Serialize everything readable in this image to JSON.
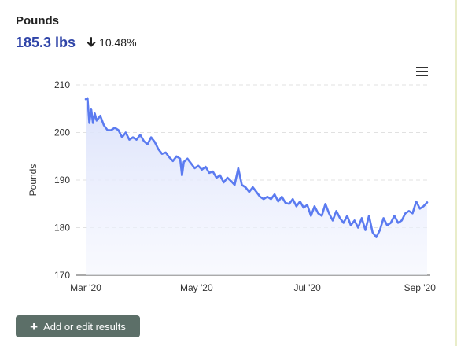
{
  "widget": {
    "title": "Pounds",
    "current_value": "185.3 lbs",
    "change": "10.48%",
    "change_icon": "arrow-down-icon",
    "menu_icon": "hamburger-menu-icon",
    "add_button_label": "Add or edit results",
    "add_button_icon": "plus-icon"
  },
  "colors": {
    "accent": "#2f44a8",
    "line": "#5b7bf0",
    "area": "#e8ecfd",
    "button": "#5c6f68"
  },
  "chart_data": {
    "type": "area",
    "title": "",
    "xlabel": "",
    "ylabel": "Pounds",
    "ylim": [
      170,
      210
    ],
    "yticks": [
      170,
      180,
      190,
      200,
      210
    ],
    "xlim": [
      "2020-03-01",
      "2020-09-05"
    ],
    "xticks": [
      {
        "date": "2020-03-01",
        "label": "Mar '20"
      },
      {
        "date": "2020-05-01",
        "label": "May '20"
      },
      {
        "date": "2020-07-01",
        "label": "Jul '20"
      },
      {
        "date": "2020-09-01",
        "label": "Sep '20"
      }
    ],
    "grid": "horizontal dashed",
    "series": [
      {
        "name": "",
        "points": [
          [
            "2020-03-01",
            207.0
          ],
          [
            "2020-03-02",
            207.2
          ],
          [
            "2020-03-03",
            202.0
          ],
          [
            "2020-03-04",
            205.0
          ],
          [
            "2020-03-05",
            202.0
          ],
          [
            "2020-03-06",
            204.0
          ],
          [
            "2020-03-07",
            202.5
          ],
          [
            "2020-03-09",
            203.5
          ],
          [
            "2020-03-11",
            201.5
          ],
          [
            "2020-03-13",
            200.5
          ],
          [
            "2020-03-15",
            200.5
          ],
          [
            "2020-03-17",
            201.0
          ],
          [
            "2020-03-19",
            200.5
          ],
          [
            "2020-03-21",
            199.0
          ],
          [
            "2020-03-23",
            200.0
          ],
          [
            "2020-03-25",
            198.5
          ],
          [
            "2020-03-27",
            199.0
          ],
          [
            "2020-03-29",
            198.5
          ],
          [
            "2020-03-31",
            199.5
          ],
          [
            "2020-04-02",
            198.2
          ],
          [
            "2020-04-04",
            197.5
          ],
          [
            "2020-04-06",
            199.0
          ],
          [
            "2020-04-08",
            198.0
          ],
          [
            "2020-04-10",
            196.5
          ],
          [
            "2020-04-12",
            195.5
          ],
          [
            "2020-04-14",
            195.8
          ],
          [
            "2020-04-16",
            194.8
          ],
          [
            "2020-04-18",
            194.0
          ],
          [
            "2020-04-20",
            195.0
          ],
          [
            "2020-04-22",
            194.5
          ],
          [
            "2020-04-23",
            191.0
          ],
          [
            "2020-04-24",
            193.8
          ],
          [
            "2020-04-26",
            194.5
          ],
          [
            "2020-04-28",
            193.5
          ],
          [
            "2020-04-30",
            192.5
          ],
          [
            "2020-05-02",
            193.0
          ],
          [
            "2020-05-04",
            192.2
          ],
          [
            "2020-05-06",
            192.8
          ],
          [
            "2020-05-08",
            191.5
          ],
          [
            "2020-05-10",
            191.8
          ],
          [
            "2020-05-12",
            190.5
          ],
          [
            "2020-05-14",
            191.0
          ],
          [
            "2020-05-16",
            189.5
          ],
          [
            "2020-05-18",
            190.5
          ],
          [
            "2020-05-20",
            189.8
          ],
          [
            "2020-05-22",
            189.0
          ],
          [
            "2020-05-24",
            192.5
          ],
          [
            "2020-05-26",
            189.0
          ],
          [
            "2020-05-28",
            188.5
          ],
          [
            "2020-05-30",
            187.5
          ],
          [
            "2020-06-01",
            188.5
          ],
          [
            "2020-06-03",
            187.5
          ],
          [
            "2020-06-05",
            186.5
          ],
          [
            "2020-06-07",
            186.0
          ],
          [
            "2020-06-09",
            186.5
          ],
          [
            "2020-06-11",
            186.0
          ],
          [
            "2020-06-13",
            187.0
          ],
          [
            "2020-06-15",
            185.5
          ],
          [
            "2020-06-17",
            186.5
          ],
          [
            "2020-06-19",
            185.2
          ],
          [
            "2020-06-21",
            185.0
          ],
          [
            "2020-06-23",
            186.0
          ],
          [
            "2020-06-25",
            184.5
          ],
          [
            "2020-06-27",
            185.5
          ],
          [
            "2020-06-29",
            184.2
          ],
          [
            "2020-07-01",
            184.8
          ],
          [
            "2020-07-03",
            182.5
          ],
          [
            "2020-07-05",
            184.5
          ],
          [
            "2020-07-07",
            183.0
          ],
          [
            "2020-07-09",
            182.5
          ],
          [
            "2020-07-11",
            185.0
          ],
          [
            "2020-07-13",
            183.0
          ],
          [
            "2020-07-15",
            181.5
          ],
          [
            "2020-07-17",
            183.5
          ],
          [
            "2020-07-19",
            182.0
          ],
          [
            "2020-07-21",
            181.0
          ],
          [
            "2020-07-23",
            182.5
          ],
          [
            "2020-07-25",
            180.5
          ],
          [
            "2020-07-27",
            181.5
          ],
          [
            "2020-07-29",
            180.0
          ],
          [
            "2020-07-31",
            182.0
          ],
          [
            "2020-08-02",
            179.5
          ],
          [
            "2020-08-04",
            182.5
          ],
          [
            "2020-08-06",
            179.0
          ],
          [
            "2020-08-08",
            178.0
          ],
          [
            "2020-08-10",
            179.5
          ],
          [
            "2020-08-12",
            182.0
          ],
          [
            "2020-08-14",
            180.5
          ],
          [
            "2020-08-16",
            181.0
          ],
          [
            "2020-08-18",
            182.5
          ],
          [
            "2020-08-20",
            181.0
          ],
          [
            "2020-08-22",
            181.5
          ],
          [
            "2020-08-24",
            183.0
          ],
          [
            "2020-08-26",
            183.5
          ],
          [
            "2020-08-28",
            183.0
          ],
          [
            "2020-08-30",
            185.5
          ],
          [
            "2020-09-01",
            184.0
          ],
          [
            "2020-09-03",
            184.5
          ],
          [
            "2020-09-05",
            185.3
          ]
        ]
      }
    ]
  }
}
